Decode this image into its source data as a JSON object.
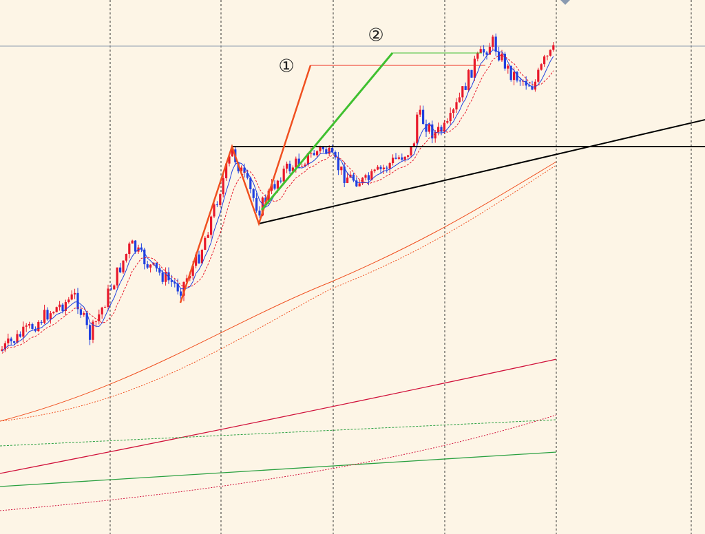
{
  "annotations": {
    "label_1": "①",
    "label_2": "②"
  }
}
